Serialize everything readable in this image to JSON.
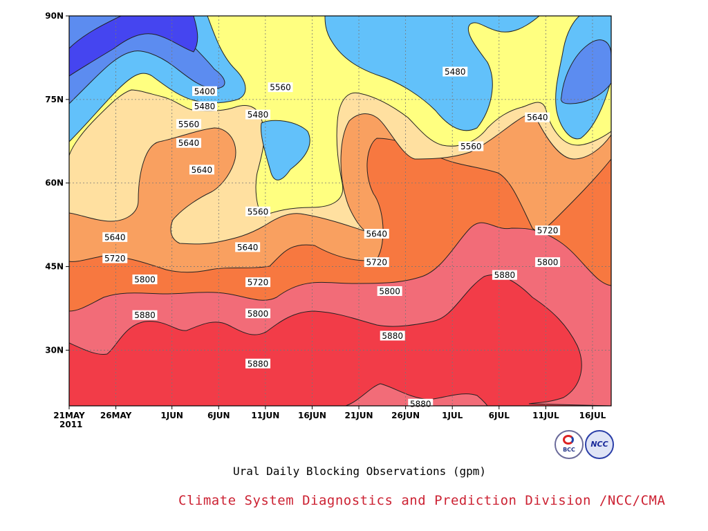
{
  "chart_data": {
    "type": "heatmap",
    "title": "Ural Daily Blocking Observations (gpm)",
    "credit": "Climate System Diagnostics and Prediction Division /NCC/CMA",
    "xaxis": {
      "start_year": "2011",
      "ticks": [
        {
          "day": 0,
          "label": "21MAY"
        },
        {
          "day": 5,
          "label": "26MAY"
        },
        {
          "day": 11,
          "label": "1JUN"
        },
        {
          "day": 16,
          "label": "6JUN"
        },
        {
          "day": 21,
          "label": "11JUN"
        },
        {
          "day": 26,
          "label": "16JUN"
        },
        {
          "day": 31,
          "label": "21JUN"
        },
        {
          "day": 36,
          "label": "26JUN"
        },
        {
          "day": 41,
          "label": "1JUL"
        },
        {
          "day": 46,
          "label": "6JUL"
        },
        {
          "day": 51,
          "label": "11JUL"
        },
        {
          "day": 56,
          "label": "16JUL"
        }
      ],
      "range_days": [
        0,
        58
      ]
    },
    "yaxis": {
      "ticks": [
        {
          "lat": 30,
          "label": "30N"
        },
        {
          "lat": 45,
          "label": "45N"
        },
        {
          "lat": 60,
          "label": "60N"
        },
        {
          "lat": 75,
          "label": "75N"
        },
        {
          "lat": 90,
          "label": "90N"
        }
      ],
      "range": [
        20,
        90
      ]
    },
    "grid": true,
    "contour_levels": [
      5400,
      5480,
      5560,
      5640,
      5720,
      5800,
      5880
    ],
    "fill_colors": [
      "#4545f0",
      "#5c8cf0",
      "#62c1fa",
      "#ffff80",
      "#ffe0a0",
      "#f9a060",
      "#f77840",
      "#f26c78",
      "#f23c48"
    ],
    "labeled_contours": [
      {
        "value": "5400",
        "day": 14.5,
        "lat": 76.5
      },
      {
        "value": "5480",
        "day": 14.5,
        "lat": 73.8
      },
      {
        "value": "5560",
        "day": 12.8,
        "lat": 70.6
      },
      {
        "value": "5640",
        "day": 12.8,
        "lat": 67.2
      },
      {
        "value": "5640",
        "day": 14.2,
        "lat": 62.4
      },
      {
        "value": "5560",
        "day": 22.6,
        "lat": 77.2
      },
      {
        "value": "5480",
        "day": 20.2,
        "lat": 72.3
      },
      {
        "value": "5560",
        "day": 20.2,
        "lat": 54.9
      },
      {
        "value": "5640",
        "day": 19.1,
        "lat": 48.5
      },
      {
        "value": "5640",
        "day": 4.9,
        "lat": 50.3
      },
      {
        "value": "5720",
        "day": 4.9,
        "lat": 46.5
      },
      {
        "value": "5800",
        "day": 8.1,
        "lat": 42.7
      },
      {
        "value": "5880",
        "day": 8.1,
        "lat": 36.3
      },
      {
        "value": "5720",
        "day": 20.2,
        "lat": 42.2
      },
      {
        "value": "5800",
        "day": 20.2,
        "lat": 36.6
      },
      {
        "value": "5880",
        "day": 20.2,
        "lat": 27.6
      },
      {
        "value": "5640",
        "day": 32.9,
        "lat": 50.9
      },
      {
        "value": "5720",
        "day": 32.9,
        "lat": 45.8
      },
      {
        "value": "5800",
        "day": 34.3,
        "lat": 40.6
      },
      {
        "value": "5880",
        "day": 34.6,
        "lat": 32.6
      },
      {
        "value": "5880",
        "day": 37.6,
        "lat": 20.4
      },
      {
        "value": "5480",
        "day": 41.3,
        "lat": 80.0
      },
      {
        "value": "5560",
        "day": 43.0,
        "lat": 66.6
      },
      {
        "value": "5640",
        "day": 50.1,
        "lat": 71.8
      },
      {
        "value": "5720",
        "day": 51.2,
        "lat": 51.5
      },
      {
        "value": "5800",
        "day": 51.2,
        "lat": 45.8
      },
      {
        "value": "5880",
        "day": 46.6,
        "lat": 43.5
      }
    ]
  }
}
